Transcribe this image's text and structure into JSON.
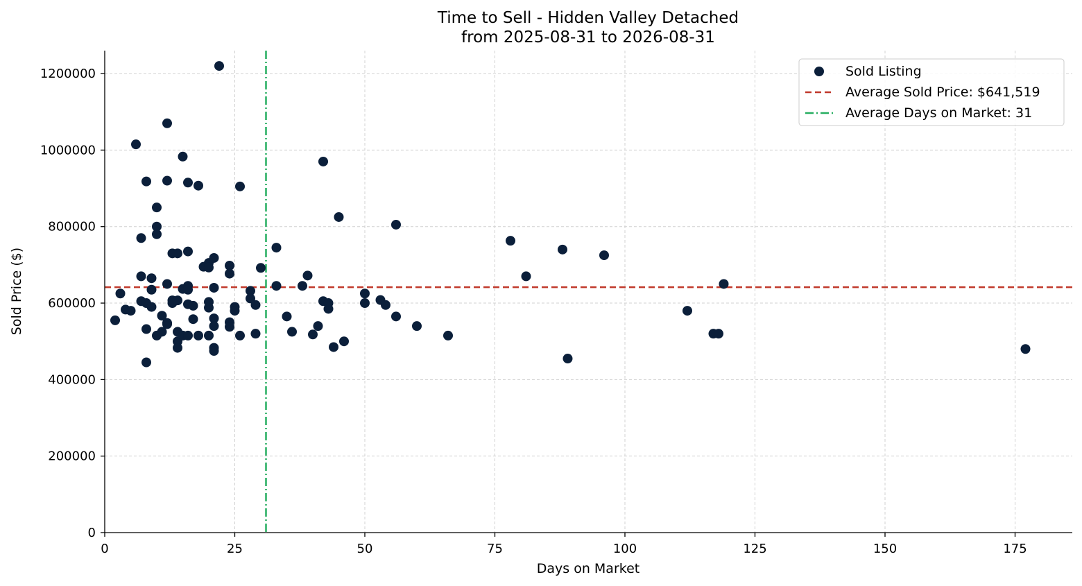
{
  "chart_data": {
    "type": "scatter",
    "title": "Time to Sell - Hidden Valley Detached",
    "subtitle": "from 2025-08-31 to 2026-08-31",
    "xlabel": "Days on Market",
    "ylabel": "Sold Price ($)",
    "xlim": [
      0,
      186
    ],
    "ylim": [
      0,
      1260000
    ],
    "xticks": [
      0,
      25,
      50,
      75,
      100,
      125,
      150,
      175
    ],
    "yticks": [
      0,
      200000,
      400000,
      600000,
      800000,
      1000000,
      1200000
    ],
    "grid": true,
    "legend_position": "top-right",
    "colors": {
      "points": "#0b1f3a",
      "avg_price_line": "#c0392b",
      "avg_days_line": "#27ae60"
    },
    "legend": [
      {
        "label": "Sold Listing",
        "kind": "marker"
      },
      {
        "label": "Average Sold Price: $641,519",
        "kind": "dashed"
      },
      {
        "label": "Average Days on Market: 31",
        "kind": "dashdot"
      }
    ],
    "average_price": 641519,
    "average_days": 31,
    "series": [
      {
        "name": "Sold Listing",
        "points": [
          [
            2,
            555000
          ],
          [
            3,
            625000
          ],
          [
            4,
            583000
          ],
          [
            5,
            580000
          ],
          [
            6,
            1015000
          ],
          [
            7,
            770000
          ],
          [
            7,
            670000
          ],
          [
            7,
            605000
          ],
          [
            8,
            918000
          ],
          [
            8,
            532000
          ],
          [
            8,
            600000
          ],
          [
            8,
            445000
          ],
          [
            9,
            665000
          ],
          [
            9,
            635000
          ],
          [
            9,
            590000
          ],
          [
            10,
            850000
          ],
          [
            10,
            800000
          ],
          [
            10,
            780000
          ],
          [
            10,
            515000
          ],
          [
            11,
            567000
          ],
          [
            11,
            525000
          ],
          [
            12,
            1070000
          ],
          [
            12,
            920000
          ],
          [
            12,
            650000
          ],
          [
            12,
            548000
          ],
          [
            12,
            545000
          ],
          [
            13,
            730000
          ],
          [
            13,
            607000
          ],
          [
            13,
            600000
          ],
          [
            14,
            730000
          ],
          [
            14,
            607000
          ],
          [
            14,
            525000
          ],
          [
            14,
            500000
          ],
          [
            14,
            483000
          ],
          [
            15,
            983000
          ],
          [
            15,
            637000
          ],
          [
            15,
            515000
          ],
          [
            16,
            915000
          ],
          [
            16,
            735000
          ],
          [
            16,
            645000
          ],
          [
            16,
            635000
          ],
          [
            16,
            597000
          ],
          [
            16,
            515000
          ],
          [
            17,
            593000
          ],
          [
            17,
            558000
          ],
          [
            18,
            907000
          ],
          [
            18,
            515000
          ],
          [
            19,
            695000
          ],
          [
            20,
            705000
          ],
          [
            20,
            693000
          ],
          [
            20,
            603000
          ],
          [
            20,
            588000
          ],
          [
            20,
            515000
          ],
          [
            21,
            718000
          ],
          [
            21,
            640000
          ],
          [
            21,
            560000
          ],
          [
            21,
            540000
          ],
          [
            21,
            483000
          ],
          [
            21,
            475000
          ],
          [
            22,
            1220000
          ],
          [
            24,
            698000
          ],
          [
            24,
            677000
          ],
          [
            24,
            550000
          ],
          [
            24,
            538000
          ],
          [
            25,
            590000
          ],
          [
            25,
            580000
          ],
          [
            26,
            905000
          ],
          [
            26,
            515000
          ],
          [
            28,
            632000
          ],
          [
            28,
            612000
          ],
          [
            29,
            595000
          ],
          [
            29,
            520000
          ],
          [
            30,
            692000
          ],
          [
            33,
            745000
          ],
          [
            33,
            645000
          ],
          [
            35,
            565000
          ],
          [
            36,
            525000
          ],
          [
            38,
            645000
          ],
          [
            39,
            672000
          ],
          [
            40,
            518000
          ],
          [
            41,
            540000
          ],
          [
            42,
            970000
          ],
          [
            42,
            605000
          ],
          [
            43,
            600000
          ],
          [
            43,
            585000
          ],
          [
            44,
            485000
          ],
          [
            45,
            825000
          ],
          [
            46,
            500000
          ],
          [
            50,
            625000
          ],
          [
            50,
            600000
          ],
          [
            53,
            608000
          ],
          [
            54,
            595000
          ],
          [
            56,
            805000
          ],
          [
            56,
            565000
          ],
          [
            60,
            540000
          ],
          [
            66,
            515000
          ],
          [
            78,
            763000
          ],
          [
            81,
            670000
          ],
          [
            88,
            740000
          ],
          [
            89,
            455000
          ],
          [
            96,
            725000
          ],
          [
            112,
            580000
          ],
          [
            117,
            520000
          ],
          [
            118,
            520000
          ],
          [
            119,
            650000
          ],
          [
            177,
            480000
          ]
        ]
      }
    ]
  }
}
